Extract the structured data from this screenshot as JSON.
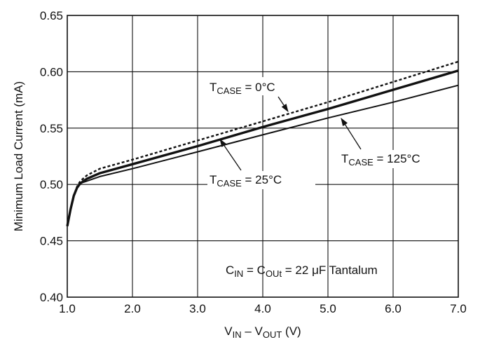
{
  "chart_data": {
    "type": "line",
    "xlabel": {
      "main": "V",
      "sub_in": "IN",
      "dash": " – V",
      "sub_out": "OUT",
      "unit": " (V)"
    },
    "ylabel": "Minimum Load Current (mA)",
    "xlim": [
      1.0,
      7.0
    ],
    "ylim": [
      0.4,
      0.65
    ],
    "xticks": [
      "1.0",
      "2.0",
      "3.0",
      "4.0",
      "5.0",
      "6.0",
      "7.0"
    ],
    "yticks": [
      "0.40",
      "0.45",
      "0.50",
      "0.55",
      "0.60",
      "0.65"
    ],
    "grid": true,
    "series": [
      {
        "name": "T CASE = 0°C",
        "style": "dashed",
        "points": [
          [
            1.0,
            0.463
          ],
          [
            1.05,
            0.478
          ],
          [
            1.1,
            0.49
          ],
          [
            1.15,
            0.498
          ],
          [
            1.2,
            0.503
          ],
          [
            1.3,
            0.508
          ],
          [
            1.5,
            0.514
          ],
          [
            2.0,
            0.522
          ],
          [
            3.0,
            0.539
          ],
          [
            4.0,
            0.556
          ],
          [
            5.0,
            0.573
          ],
          [
            6.0,
            0.591
          ],
          [
            7.0,
            0.609
          ]
        ]
      },
      {
        "name": "T CASE = 25°C",
        "style": "thick",
        "points": [
          [
            1.0,
            0.463
          ],
          [
            1.05,
            0.478
          ],
          [
            1.1,
            0.49
          ],
          [
            1.15,
            0.497
          ],
          [
            1.2,
            0.501
          ],
          [
            1.3,
            0.505
          ],
          [
            1.5,
            0.51
          ],
          [
            2.0,
            0.518
          ],
          [
            3.0,
            0.534
          ],
          [
            4.0,
            0.551
          ],
          [
            5.0,
            0.567
          ],
          [
            6.0,
            0.584
          ],
          [
            7.0,
            0.601
          ]
        ]
      },
      {
        "name": "T CASE = 125°C",
        "style": "thin",
        "points": [
          [
            1.0,
            0.463
          ],
          [
            1.05,
            0.478
          ],
          [
            1.1,
            0.49
          ],
          [
            1.15,
            0.497
          ],
          [
            1.2,
            0.501
          ],
          [
            1.3,
            0.503
          ],
          [
            1.5,
            0.507
          ],
          [
            2.0,
            0.514
          ],
          [
            3.0,
            0.529
          ],
          [
            4.0,
            0.544
          ],
          [
            5.0,
            0.559
          ],
          [
            6.0,
            0.573
          ],
          [
            7.0,
            0.588
          ]
        ]
      }
    ],
    "annotations": {
      "t0": {
        "main": "T",
        "sub": "CASE",
        "rest": " = 0°C"
      },
      "t25": {
        "main": "T",
        "sub": "CASE",
        "rest": " = 25°C"
      },
      "t125": {
        "main": "T",
        "sub": "CASE",
        "rest": " = 125°C"
      },
      "cap": {
        "c1": "C",
        "sub1": "IN",
        "mid": " = C",
        "sub2": "OUt",
        "rest": " = 22 μF Tantalum"
      }
    }
  }
}
